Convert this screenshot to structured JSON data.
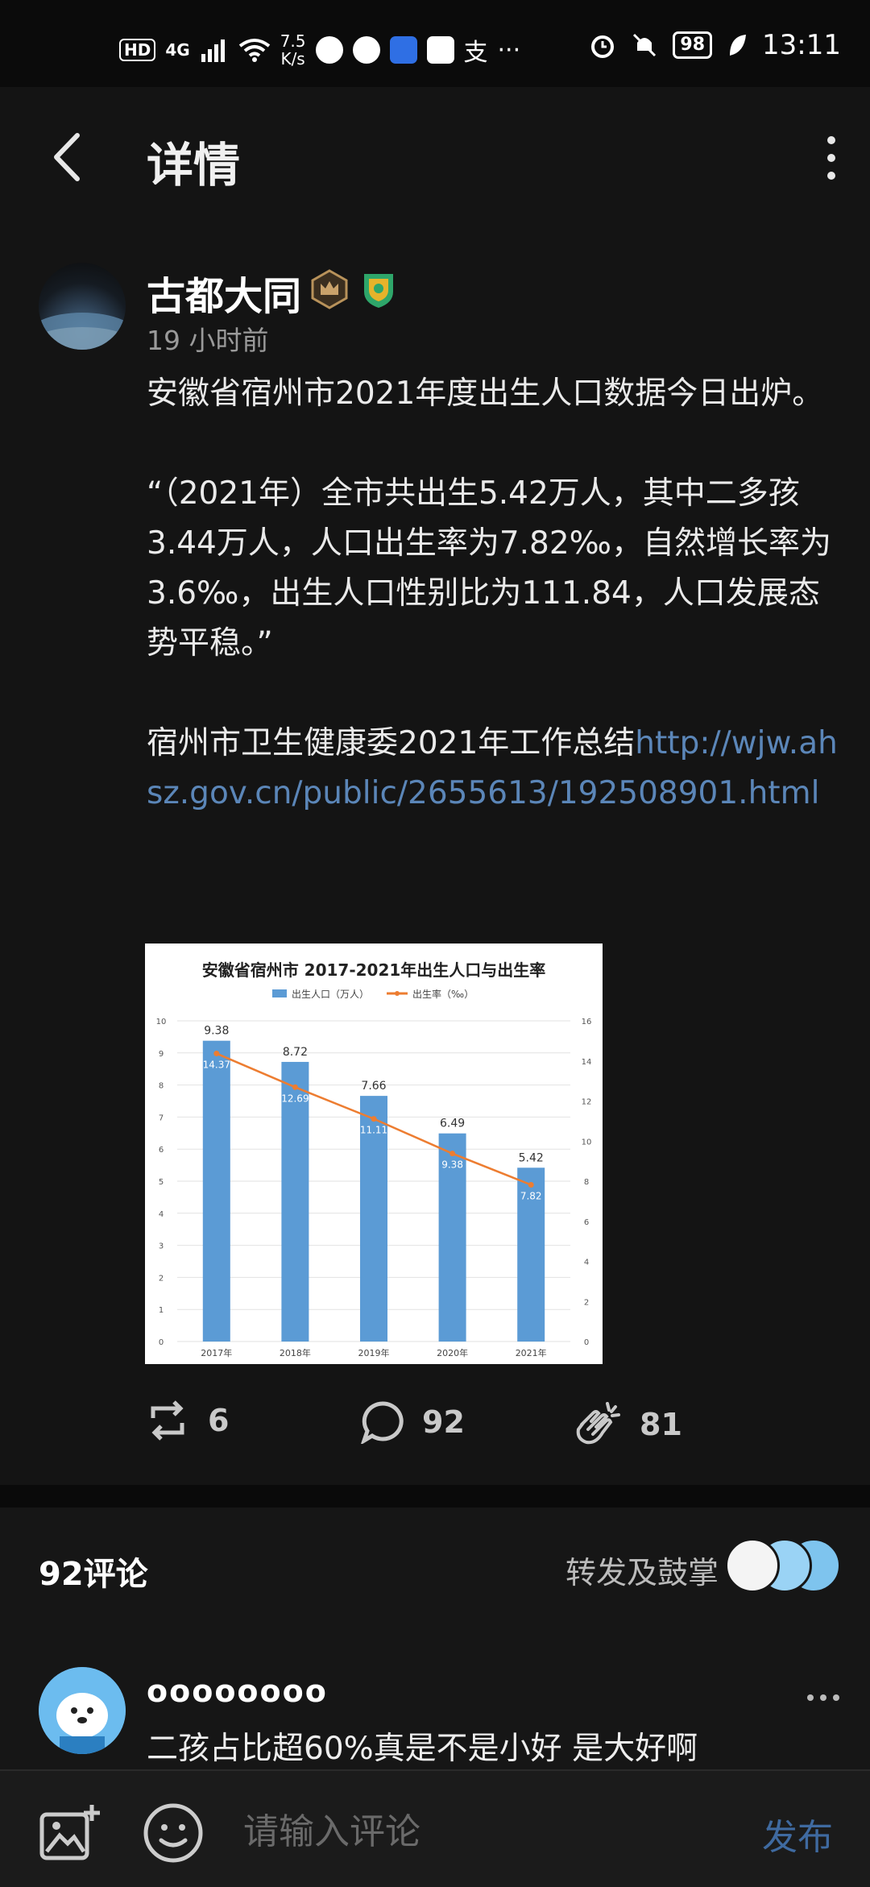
{
  "status_bar": {
    "network_hd": "HD",
    "network_type": "4G",
    "speed_value": "7.5",
    "speed_unit": "K/s",
    "alipay_label": "支",
    "more": "···",
    "battery": "98",
    "time": "13:11"
  },
  "header": {
    "title": "详情"
  },
  "post": {
    "author": "古都大同",
    "time": "19 小时前",
    "paragraphs": [
      "安徽省宿州市2021年度出生人口数据今日出炉。",
      "“（2021年）全市共出生5.42万人，其中二多孩3.44万人，人口出生率为7.82‰，自然增长率为3.6‰，出生人口性别比为111.84，人口发展态势平稳。”"
    ],
    "source_text": "宿州市卫生健康委2021年工作总结",
    "source_link": "http://wjw.ahsz.gov.cn/public/2655613/192508901.html",
    "repost_count": "6",
    "comment_count": "92",
    "clap_count": "81"
  },
  "chart_data": {
    "type": "bar",
    "title": "安徽省宿州市  2017-2021年出生人口与出生率",
    "legend": [
      "出生人口（万人）",
      "出生率（‰）"
    ],
    "legend_placement": "top-center",
    "categories": [
      "2017年",
      "2018年",
      "2019年",
      "2020年",
      "2021年"
    ],
    "series": [
      {
        "name": "出生人口（万人）",
        "type": "bar",
        "axis": "left",
        "values": [
          9.38,
          8.72,
          7.66,
          6.49,
          5.42
        ]
      },
      {
        "name": "出生率（‰）",
        "type": "line",
        "axis": "right",
        "values": [
          14.37,
          12.69,
          11.11,
          9.38,
          7.82
        ]
      }
    ],
    "bar_labels": [
      "9.38",
      "8.72",
      "7.66",
      "6.49",
      "5.42"
    ],
    "line_labels": [
      "14.37",
      "12.69",
      "11.11",
      "9.38",
      "7.82"
    ],
    "ylim_left": [
      0,
      10
    ],
    "yticks_left": [
      "0",
      "1",
      "2",
      "3",
      "4",
      "5",
      "6",
      "7",
      "8",
      "9",
      "10"
    ],
    "ylim_right": [
      0,
      16
    ],
    "yticks_right": [
      "0",
      "2",
      "4",
      "6",
      "8",
      "10",
      "12",
      "14",
      "16"
    ],
    "grid": true,
    "colors": {
      "bar": "#5b9bd5",
      "line": "#ed7d31"
    }
  },
  "comments_section": {
    "count_label": "92评论",
    "repost_clap_label": "转发及鼓掌"
  },
  "comments": [
    {
      "username": "oooooooo",
      "text": "二孩占比超60%真是不是小好 是大好啊"
    }
  ],
  "input_bar": {
    "placeholder": "请输入评论",
    "send_label": "发布"
  }
}
